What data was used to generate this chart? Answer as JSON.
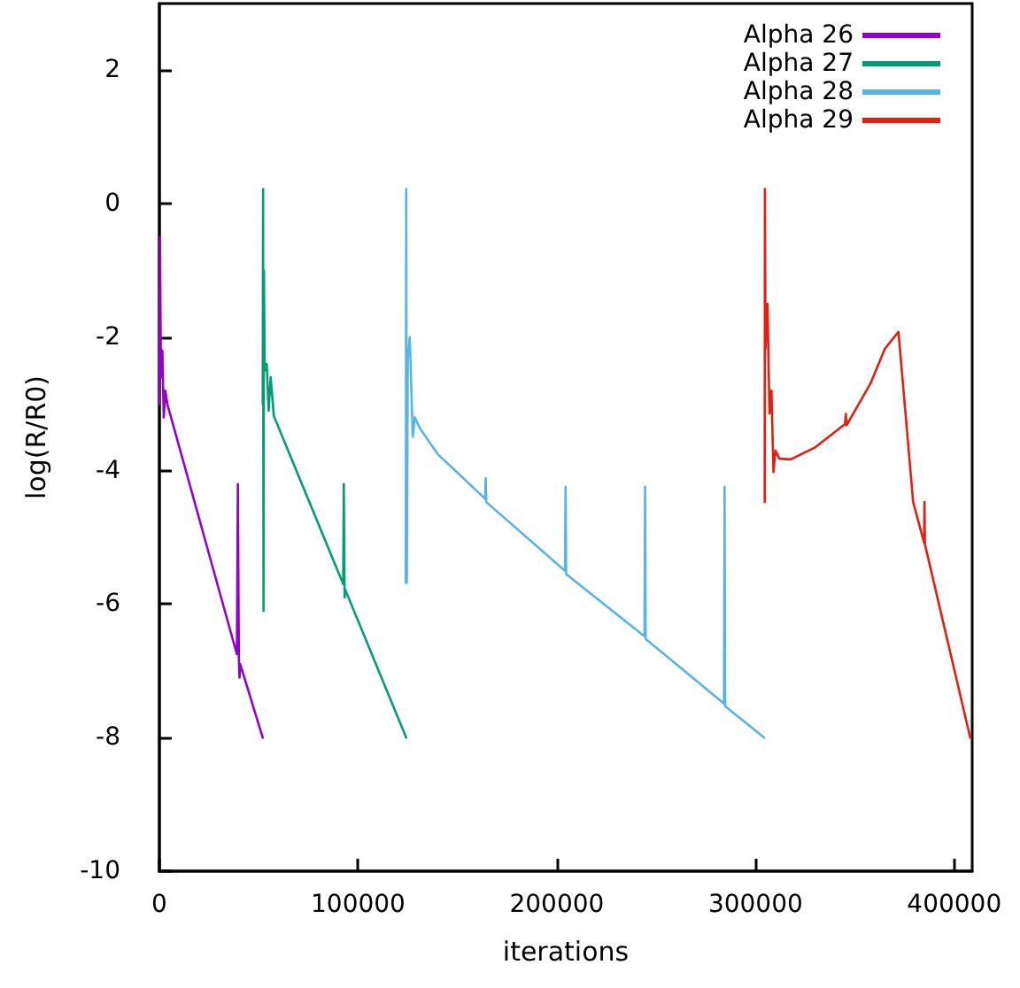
{
  "chart_data": {
    "type": "line",
    "xlabel": "iterations",
    "ylabel": "log(R/R0)",
    "xlim": [
      0,
      409000
    ],
    "xticks": [
      0,
      100000,
      200000,
      300000,
      400000
    ],
    "ylim": [
      -10,
      3
    ],
    "yticks": [
      -10,
      -8,
      -6,
      -4,
      -2,
      0,
      2
    ],
    "grid": false,
    "legend": "top right",
    "marker": "none",
    "line_style": "solid",
    "series": [
      {
        "name": "Alpha 26",
        "color": "#9400d3",
        "x": [
          0,
          300,
          800,
          1500,
          2200,
          3000,
          4000,
          39000,
          39500,
          40000,
          40300,
          40700,
          52000
        ],
        "values": [
          -3.0,
          -0.5,
          -2.6,
          -2.2,
          -3.2,
          -2.8,
          -3.0,
          -6.75,
          -4.2,
          -6.8,
          -7.1,
          -6.9,
          -8.0
        ]
      },
      {
        "name": "Alpha 27",
        "color": "#009e73",
        "x": [
          52000,
          52200,
          52400,
          52600,
          53000,
          54000,
          55000,
          56000,
          57600,
          92500,
          92800,
          93200,
          93500,
          124200
        ],
        "values": [
          -3.0,
          0.22,
          -6.1,
          -1.0,
          -2.5,
          -2.4,
          -3.1,
          -2.6,
          -3.18,
          -5.7,
          -4.2,
          -5.9,
          -5.78,
          -8.0
        ]
      },
      {
        "name": "Alpha 28",
        "color": "#56b4e9",
        "x": [
          124000,
          124200,
          124500,
          125000,
          126000,
          127500,
          128500,
          131000,
          140000,
          163900,
          164200,
          164500,
          204100,
          204400,
          204700,
          244100,
          244400,
          244700,
          284100,
          284400,
          284700,
          304400
        ],
        "values": [
          -5.68,
          0.22,
          -5.68,
          -2.33,
          -2.0,
          -3.49,
          -3.2,
          -3.36,
          -3.75,
          -4.42,
          -4.11,
          -4.47,
          -5.5,
          -4.24,
          -5.55,
          -6.48,
          -4.24,
          -6.52,
          -7.49,
          -4.24,
          -7.53,
          -8.0
        ]
      },
      {
        "name": "Alpha 29",
        "color": "#e51e10",
        "x": [
          304600,
          304700,
          305000,
          306000,
          307000,
          308000,
          309000,
          310000,
          312000,
          317700,
          330000,
          345000,
          345400,
          345800,
          357700,
          365100,
          371900,
          379300,
          384800,
          385000,
          385200,
          408000
        ],
        "values": [
          -4.47,
          0.22,
          -2.17,
          -1.5,
          -3.14,
          -2.8,
          -4.02,
          -3.7,
          -3.82,
          -3.83,
          -3.65,
          -3.3,
          -3.15,
          -3.32,
          -2.7,
          -2.17,
          -1.92,
          -4.47,
          -5.08,
          -4.47,
          -5.1,
          -8.0
        ]
      }
    ]
  }
}
